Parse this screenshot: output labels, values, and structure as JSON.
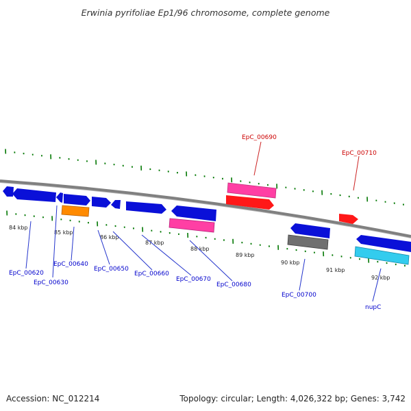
{
  "title": "Erwinia pyrifoliae Ep1/96 chromosome, complete genome",
  "accession": "Accession: NC_012214",
  "summary": "Topology: circular; Length: 4,026,322 bp; Genes: 3,742",
  "colors": {
    "backbone": "#888888",
    "cds": "#0a10d8",
    "cds_highlight": "#ff2a2a",
    "rna": "#ff3fa4",
    "rna2": "#e81898",
    "orange": "#ff8a00",
    "gray": "#777777",
    "cyan": "#33ccee",
    "label_blue": "#0000cc",
    "label_red": "#cc0000",
    "tick_green": "#007700"
  },
  "ruler": {
    "unit": "kbp",
    "labels": [
      "84 kbp",
      "85 kbp",
      "86 kbp",
      "87 kbp",
      "88 kbp",
      "89 kbp",
      "90 kbp",
      "91 kbp",
      "92 kbp"
    ]
  },
  "features": [
    {
      "name": "",
      "type": "cds",
      "strand": "reverse",
      "color": "cds"
    },
    {
      "name": "EpC_00620",
      "type": "cds",
      "strand": "reverse",
      "color": "cds"
    },
    {
      "name": "EpC_00630",
      "type": "cds",
      "strand": "reverse",
      "color": "cds"
    },
    {
      "name": "EpC_00640",
      "type": "cds",
      "strand": "forward",
      "color": "cds"
    },
    {
      "name": "EpC_00650",
      "type": "cds",
      "strand": "forward",
      "color": "cds"
    },
    {
      "name": "EpC_00660",
      "type": "cds",
      "strand": "forward",
      "color": "cds"
    },
    {
      "name": "EpC_00670",
      "type": "cds",
      "strand": "forward",
      "color": "cds"
    },
    {
      "name": "EpC_00680",
      "type": "cds",
      "strand": "reverse",
      "color": "cds"
    },
    {
      "name": "EpC_00690",
      "type": "rna",
      "strand": "forward",
      "color": "rna"
    },
    {
      "name": "EpC_00700",
      "type": "cds",
      "strand": "reverse",
      "color": "cds"
    },
    {
      "name": "EpC_00710",
      "type": "cds",
      "strand": "forward",
      "color": "cds_highlight"
    },
    {
      "name": "nupC",
      "type": "cds",
      "strand": "reverse",
      "color": "cds"
    }
  ]
}
